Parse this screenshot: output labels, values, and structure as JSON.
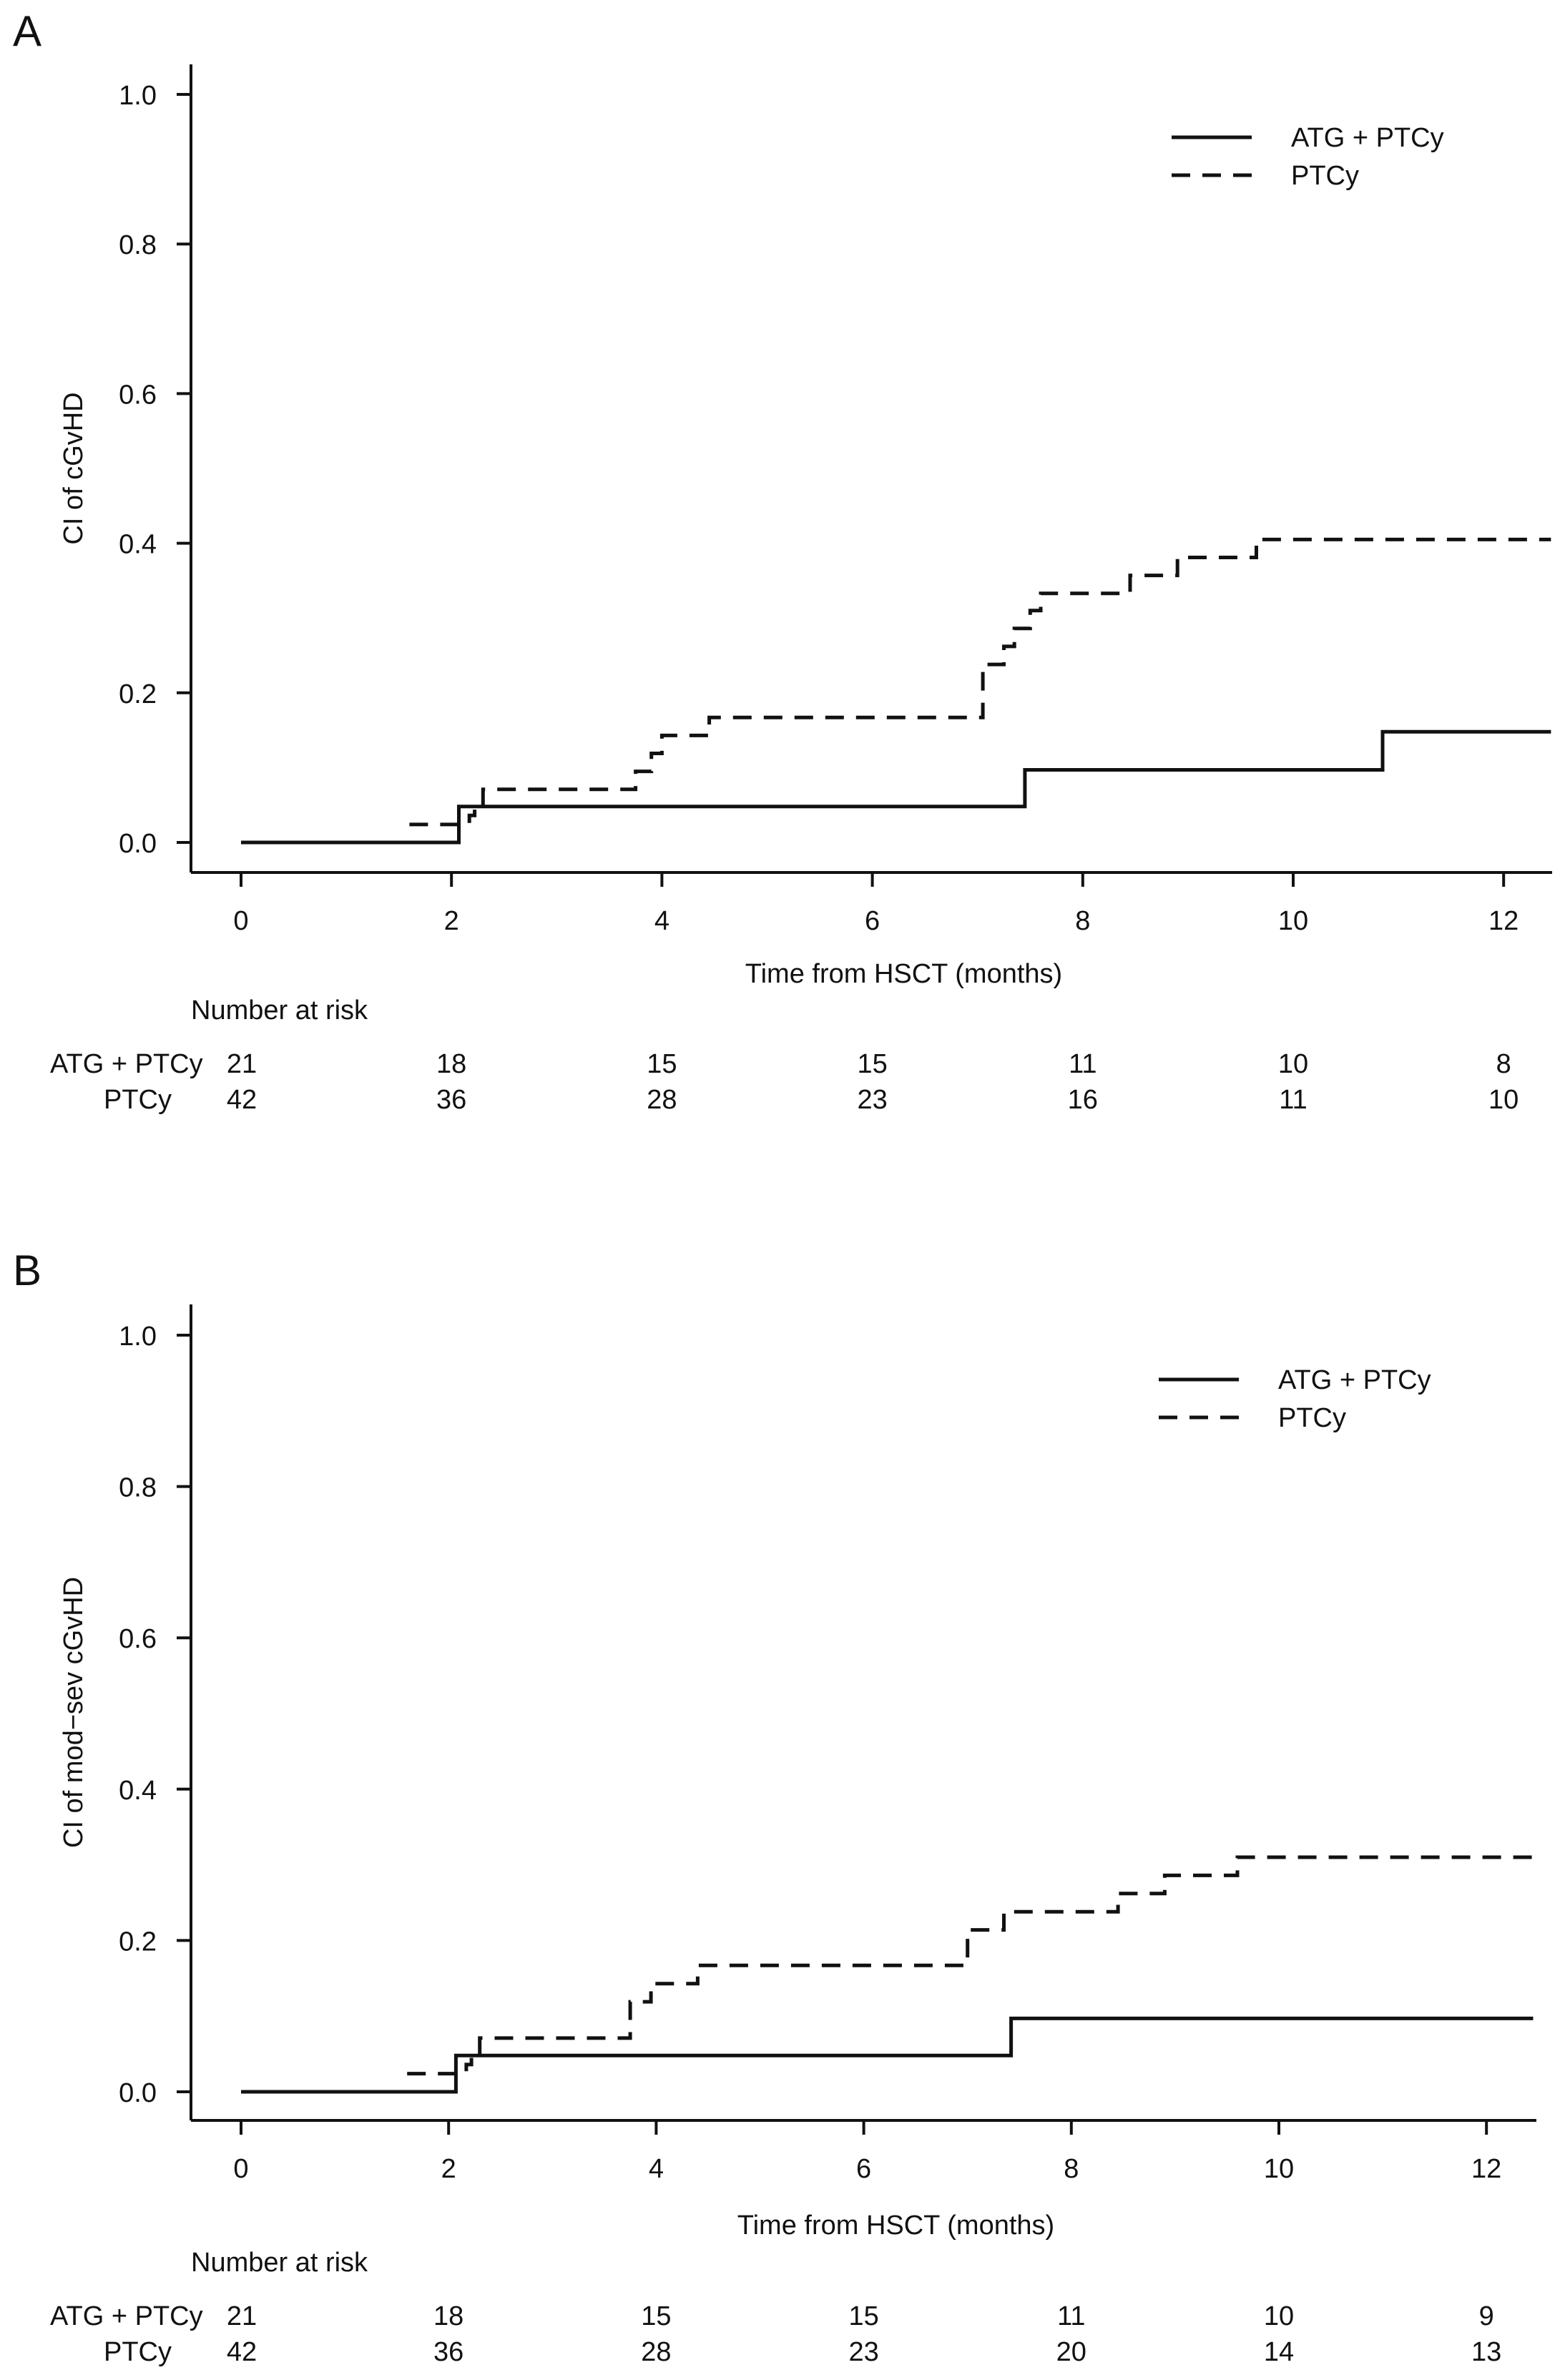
{
  "chart_data": [
    {
      "panel_label": "A",
      "type": "line",
      "step": true,
      "title": "",
      "xlabel": "Time from HSCT (months)",
      "ylabel": "CI of cGvHD",
      "xlim": [
        0,
        12.5
      ],
      "ylim": [
        0,
        1.0
      ],
      "x_ticks": [
        0,
        2,
        4,
        6,
        8,
        10,
        12
      ],
      "x_tick_labels": [
        "0",
        "2",
        "4",
        "6",
        "8",
        "10",
        "12"
      ],
      "y_ticks": [
        0.0,
        0.2,
        0.4,
        0.6,
        0.8,
        1.0
      ],
      "y_tick_labels": [
        "0.0",
        "0.2",
        "0.4",
        "0.6",
        "0.8",
        "1.0"
      ],
      "grid": false,
      "legend_position": "top-right",
      "series": [
        {
          "name": "ATG + PTCy",
          "style": "solid",
          "x": [
            0,
            2.07,
            7.45,
            10.85,
            12.45
          ],
          "y": [
            0,
            0.048,
            0.097,
            0.148,
            0.148
          ]
        },
        {
          "name": "PTCy",
          "style": "dashed",
          "x": [
            1.6,
            2.1,
            2.17,
            2.22,
            2.3,
            3.6,
            3.75,
            3.9,
            4.0,
            4.45,
            6.95,
            7.05,
            7.25,
            7.35,
            7.5,
            7.6,
            8.45,
            8.9,
            9.65,
            12.45
          ],
          "y": [
            0.024,
            0.024,
            0.036,
            0.048,
            0.071,
            0.071,
            0.095,
            0.119,
            0.143,
            0.167,
            0.167,
            0.238,
            0.262,
            0.286,
            0.31,
            0.333,
            0.357,
            0.381,
            0.405,
            0.405
          ]
        }
      ],
      "risk_table": {
        "heading": "Number at risk",
        "timepoints": [
          0,
          2,
          4,
          6,
          8,
          10,
          12
        ],
        "rows": [
          {
            "label": "ATG + PTCy",
            "values": [
              "21",
              "18",
              "15",
              "15",
              "11",
              "10",
              "8"
            ]
          },
          {
            "label": "PTCy",
            "values": [
              "42",
              "36",
              "28",
              "23",
              "16",
              "11",
              "10"
            ]
          }
        ]
      }
    },
    {
      "panel_label": "B",
      "type": "line",
      "step": true,
      "title": "",
      "xlabel": "Time from HSCT (months)",
      "ylabel": "CI of mod−sev cGvHD",
      "xlim": [
        0,
        12.5
      ],
      "ylim": [
        0,
        1.0
      ],
      "x_ticks": [
        0,
        2,
        4,
        6,
        8,
        10,
        12
      ],
      "x_tick_labels": [
        "0",
        "2",
        "4",
        "6",
        "8",
        "10",
        "12"
      ],
      "y_ticks": [
        0.0,
        0.2,
        0.4,
        0.6,
        0.8,
        1.0
      ],
      "y_tick_labels": [
        "0.0",
        "0.2",
        "0.4",
        "0.6",
        "0.8",
        "1.0"
      ],
      "grid": false,
      "legend_position": "top-right",
      "series": [
        {
          "name": "ATG + PTCy",
          "style": "solid",
          "x": [
            0,
            2.07,
            7.42,
            12.45
          ],
          "y": [
            0,
            0.048,
            0.097,
            0.097
          ]
        },
        {
          "name": "PTCy",
          "style": "dashed",
          "x": [
            1.6,
            2.1,
            2.17,
            2.22,
            2.3,
            3.6,
            3.75,
            3.95,
            4.4,
            6.9,
            7.0,
            7.35,
            8.45,
            8.9,
            9.6,
            12.45
          ],
          "y": [
            0.024,
            0.024,
            0.036,
            0.048,
            0.071,
            0.071,
            0.119,
            0.143,
            0.167,
            0.167,
            0.214,
            0.238,
            0.262,
            0.286,
            0.31,
            0.31
          ]
        }
      ],
      "risk_table": {
        "heading": "Number at risk",
        "timepoints": [
          0,
          2,
          4,
          6,
          8,
          10,
          12
        ],
        "rows": [
          {
            "label": "ATG + PTCy",
            "values": [
              "21",
              "18",
              "15",
              "15",
              "11",
              "10",
              "9"
            ]
          },
          {
            "label": "PTCy",
            "values": [
              "42",
              "36",
              "28",
              "23",
              "20",
              "14",
              "13"
            ]
          }
        ]
      }
    }
  ]
}
